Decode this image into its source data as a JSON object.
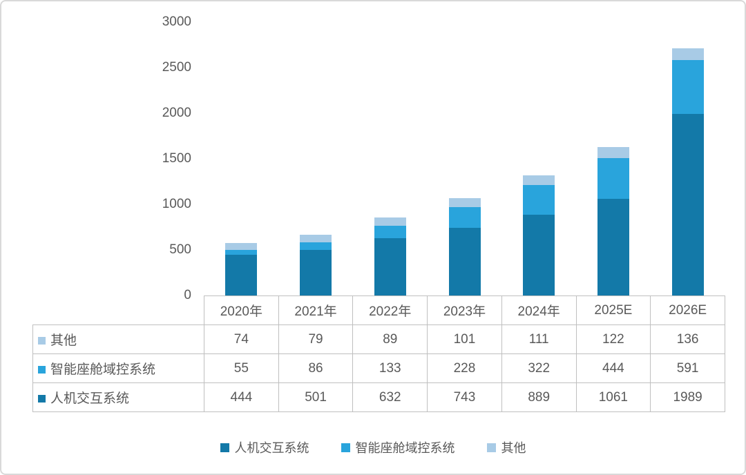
{
  "colors": {
    "series_dark": "#1379a8",
    "series_medium": "#29a4dc",
    "series_light": "#a8cbe6",
    "table_border": "#bfbfbf",
    "text": "#595959",
    "frame_border": "#d9d9d9"
  },
  "chart_data": {
    "type": "bar",
    "stacked": true,
    "title": "",
    "xlabel": "",
    "ylabel": "",
    "grid": false,
    "legend_position": "bottom",
    "ylim": [
      0,
      3000
    ],
    "yticks": [
      3000,
      2500,
      2000,
      1500,
      1000,
      500,
      0
    ],
    "categories": [
      "2020年",
      "2021年",
      "2022年",
      "2023年",
      "2024年",
      "2025E",
      "2026E"
    ],
    "series": [
      {
        "name": "人机交互系统",
        "color": "#1379a8",
        "values": [
          444,
          501,
          632,
          743,
          889,
          1061,
          1989
        ]
      },
      {
        "name": "智能座舱域控系统",
        "color": "#29a4dc",
        "values": [
          55,
          86,
          133,
          228,
          322,
          444,
          591
        ]
      },
      {
        "name": "其他",
        "color": "#a8cbe6",
        "values": [
          74,
          79,
          89,
          101,
          111,
          122,
          136
        ]
      }
    ]
  },
  "table": {
    "rows": [
      {
        "label": "其他",
        "marker_color": "#a8cbe6",
        "values": [
          74,
          79,
          89,
          101,
          111,
          122,
          136
        ]
      },
      {
        "label": "智能座舱域控系统",
        "marker_color": "#29a4dc",
        "values": [
          55,
          86,
          133,
          228,
          322,
          444,
          591
        ]
      },
      {
        "label": "人机交互系统",
        "marker_color": "#1379a8",
        "values": [
          444,
          501,
          632,
          743,
          889,
          1061,
          1989
        ]
      }
    ]
  },
  "legend": {
    "items": [
      {
        "label": "人机交互系统",
        "color": "#1379a8"
      },
      {
        "label": "智能座舱域控系统",
        "color": "#29a4dc"
      },
      {
        "label": "其他",
        "color": "#a8cbe6"
      }
    ]
  }
}
